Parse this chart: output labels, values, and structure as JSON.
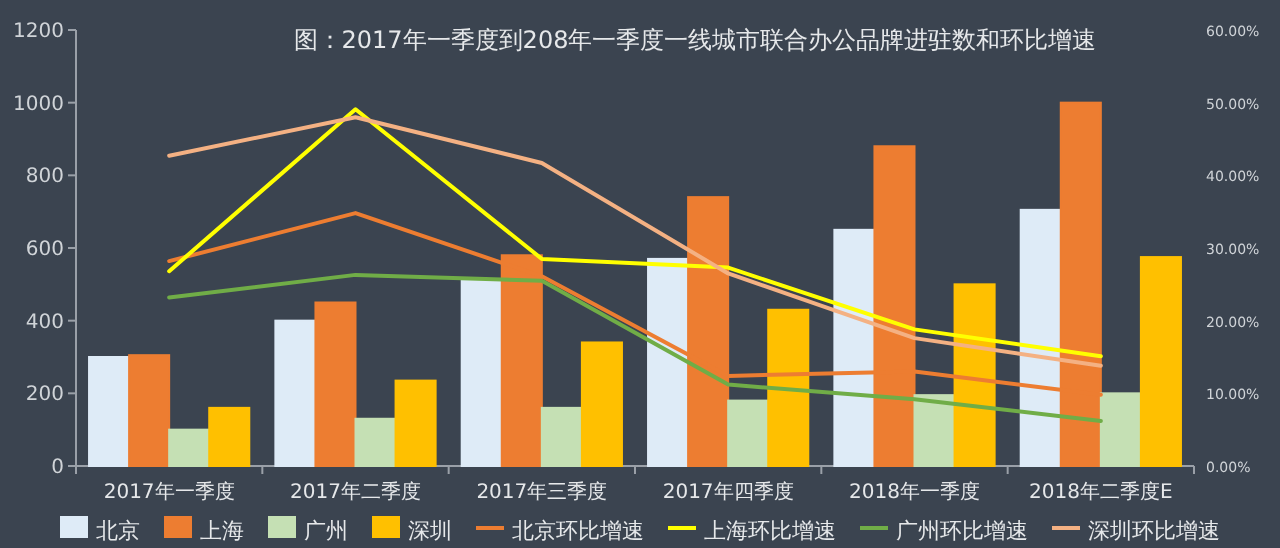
{
  "chart_data": {
    "type": "bar",
    "title": "图：2017年一季度到208年一季度一线城市联合办公品牌进驻数和环比增速",
    "categories": [
      "2017年一季度",
      "2017年二季度",
      "2017年三季度",
      "2017年四季度",
      "2018年一季度",
      "2018年二季度E"
    ],
    "ylim": [
      0,
      1200
    ],
    "yticks": [
      0,
      200,
      400,
      600,
      800,
      1000,
      1200
    ],
    "y2lim": [
      0,
      60
    ],
    "y2ticks": [
      {
        "value": 0,
        "label": "0.00%"
      },
      {
        "value": 10,
        "label": "10.00%"
      },
      {
        "value": 20,
        "label": "20.00%"
      },
      {
        "value": 30,
        "label": "30.00%"
      },
      {
        "value": 40,
        "label": "40.00%"
      },
      {
        "value": 50,
        "label": "50.00%"
      },
      {
        "value": 60,
        "label": "60.00%"
      }
    ],
    "legend": "bottom",
    "grid": false,
    "series": [
      {
        "name": "北京",
        "color": "#deebf7",
        "values": [
          300,
          400,
          510,
          570,
          650,
          705
        ]
      },
      {
        "name": "上海",
        "color": "#ed7d31",
        "values": [
          305,
          450,
          580,
          740,
          880,
          1000
        ]
      },
      {
        "name": "广州",
        "color": "#c5e0b4",
        "values": [
          100,
          130,
          160,
          180,
          195,
          200
        ]
      },
      {
        "name": "深圳",
        "color": "#ffc000",
        "values": [
          160,
          235,
          340,
          430,
          500,
          575
        ]
      },
      {
        "name": "北京环比增速",
        "type": "line",
        "axis": "y2",
        "color": "#ed7d31",
        "line_style": "solid",
        "values": [
          28.2,
          34.8,
          26.1,
          12.4,
          13.0,
          9.8
        ]
      },
      {
        "name": "上海环比增速",
        "type": "line",
        "axis": "y2",
        "color": "#ffff00",
        "line_style": "solid",
        "values": [
          26.8,
          49.1,
          28.5,
          27.3,
          18.8,
          15.1
        ]
      },
      {
        "name": "广州环比增速",
        "type": "line",
        "axis": "y2",
        "color": "#70ad47",
        "line_style": "solid",
        "values": [
          23.2,
          26.3,
          25.5,
          11.2,
          9.2,
          6.2
        ]
      },
      {
        "name": "深圳环比增速",
        "type": "line",
        "axis": "y2",
        "color": "#f4b183",
        "line_style": "solid",
        "values": [
          42.7,
          48.0,
          41.7,
          26.5,
          17.6,
          13.8
        ]
      }
    ]
  }
}
